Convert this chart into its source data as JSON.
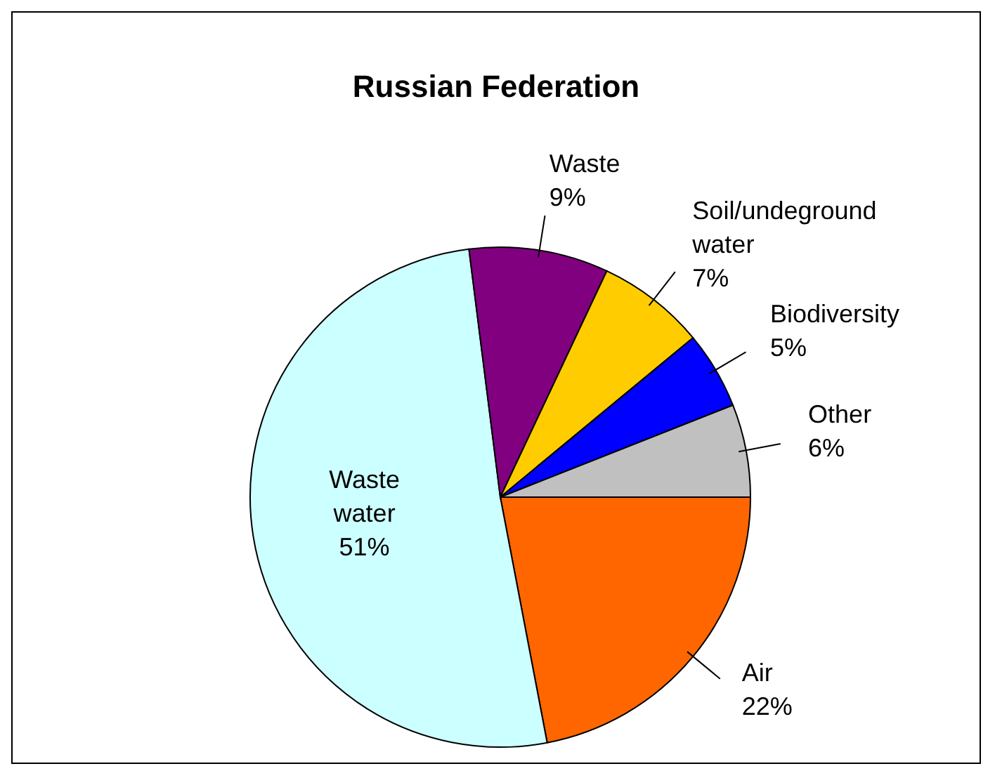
{
  "chart_data": {
    "type": "pie",
    "title": "Russian Federation",
    "categories": [
      "Air",
      "Waste water",
      "Waste",
      "Soil/undeground water",
      "Biodiversity",
      "Other"
    ],
    "values": [
      22,
      51,
      9,
      7,
      5,
      6
    ],
    "colors": [
      "#ff6600",
      "#ccffff",
      "#800080",
      "#ffcc00",
      "#0000ff",
      "#c0c0c0"
    ],
    "value_labels": [
      "22%",
      "51%",
      "9%",
      "7%",
      "5%",
      "6%"
    ],
    "legend": false
  }
}
